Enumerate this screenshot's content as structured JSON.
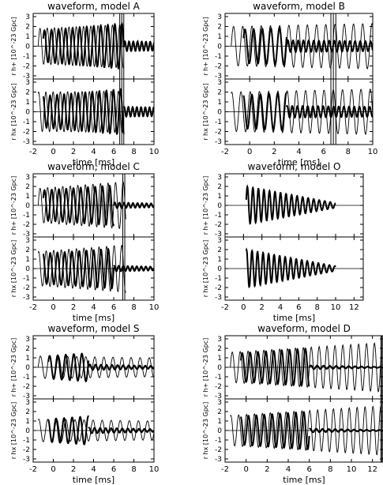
{
  "chart_data": [
    {
      "type": "line",
      "title": "waveform, model A",
      "xlabel": "time [ms]",
      "xlim": [
        -2,
        10
      ],
      "xticks": [
        "-2",
        "0",
        "2",
        "4",
        "6",
        "8",
        "10"
      ],
      "panels": [
        {
          "ylabel": "r h+ [10^-23 Gpc]",
          "ylim": [
            -3,
            3
          ],
          "yticks": [
            "-3",
            "-2",
            "-1",
            "0",
            "1",
            "2",
            "3"
          ],
          "series": [
            {
              "style": "thin",
              "x": [
                -1.5,
                7
              ],
              "amp_start": 1.8,
              "amp_end": 2.2,
              "period": 0.72,
              "phase": 0
            },
            {
              "style": "thick",
              "x": [
                -1,
                7
              ],
              "amp_start": 1.6,
              "amp_end": 2.3,
              "period": 0.7,
              "phase": 0.5
            },
            {
              "style": "thick",
              "x": [
                7,
                10
              ],
              "amp_start": 0.5,
              "amp_end": 0.45,
              "period": 0.42,
              "phase": 0
            }
          ],
          "spikes": [
            6.6,
            6.8,
            7.0
          ]
        },
        {
          "ylabel": "r hx [10^-23 Gpc]",
          "ylim": [
            -3,
            3
          ],
          "yticks": [
            "-3",
            "-2",
            "-1",
            "0",
            "1",
            "2",
            "3"
          ],
          "series": [
            {
              "style": "thin",
              "x": [
                -1.5,
                7
              ],
              "amp_start": 2,
              "amp_end": 2.1,
              "period": 0.72,
              "phase": 1.2
            },
            {
              "style": "thick",
              "x": [
                -1,
                7
              ],
              "amp_start": 1.6,
              "amp_end": 2.3,
              "period": 0.7,
              "phase": 1.8
            },
            {
              "style": "thick",
              "x": [
                7,
                10
              ],
              "amp_start": 0.5,
              "amp_end": 0.45,
              "period": 0.42,
              "phase": 1
            }
          ],
          "spikes": [
            6.6,
            6.8,
            7.0
          ]
        }
      ]
    },
    {
      "type": "line",
      "title": "waveform, model B",
      "xlabel": "time [ms]",
      "xlim": [
        -2,
        10
      ],
      "xticks": [
        "-2",
        "0",
        "2",
        "4",
        "6",
        "8",
        "10"
      ],
      "panels": [
        {
          "ylabel": "r h+ [10^-23 Gpc]",
          "ylim": [
            -3,
            3
          ],
          "yticks": [
            "-3",
            "-2",
            "-1",
            "0",
            "1",
            "2",
            "3"
          ],
          "series": [
            {
              "style": "thin",
              "x": [
                -1.5,
                10
              ],
              "amp_start": 2,
              "amp_end": 2.3,
              "period": 0.75,
              "phase": 0
            },
            {
              "style": "thick",
              "x": [
                -0.5,
                3
              ],
              "amp_start": 1.7,
              "amp_end": 1.9,
              "period": 0.7,
              "phase": 0.5
            },
            {
              "style": "thick",
              "x": [
                3,
                10
              ],
              "amp_start": 0.6,
              "amp_end": 0.5,
              "period": 0.42,
              "phase": 0
            }
          ],
          "spikes": [
            6.6,
            6.8,
            7.0
          ]
        },
        {
          "ylabel": "r hx [10^-23 Gpc]",
          "ylim": [
            -3,
            3
          ],
          "yticks": [
            "-3",
            "-2",
            "-1",
            "0",
            "1",
            "2",
            "3"
          ],
          "series": [
            {
              "style": "thin",
              "x": [
                -1.5,
                10
              ],
              "amp_start": 2,
              "amp_end": 2.3,
              "period": 0.75,
              "phase": 1.2
            },
            {
              "style": "thick",
              "x": [
                -0.5,
                3
              ],
              "amp_start": 1.7,
              "amp_end": 1.9,
              "period": 0.7,
              "phase": 1.8
            },
            {
              "style": "thick",
              "x": [
                3,
                10
              ],
              "amp_start": 0.6,
              "amp_end": 0.5,
              "period": 0.42,
              "phase": 1
            }
          ],
          "spikes": [
            6.6,
            6.8,
            7.0
          ]
        }
      ]
    },
    {
      "type": "line",
      "title": "waveform, model C",
      "xlabel": "time [ms]",
      "xlim": [
        -2,
        10
      ],
      "xticks": [
        "-2",
        "0",
        "2",
        "4",
        "6",
        "8",
        "10"
      ],
      "panels": [
        {
          "ylabel": "r h+ [10^-23 Gpc]",
          "ylim": [
            -3,
            3
          ],
          "yticks": [
            "-3",
            "-2",
            "-1",
            "0",
            "1",
            "2",
            "3"
          ],
          "series": [
            {
              "style": "thin",
              "x": [
                -1.5,
                7.2
              ],
              "amp_start": 1.8,
              "amp_end": 2.5,
              "period": 0.75,
              "phase": 0
            },
            {
              "style": "thick",
              "x": [
                -1,
                6
              ],
              "amp_start": 1.6,
              "amp_end": 2.1,
              "period": 0.72,
              "phase": 0.5
            },
            {
              "style": "thick",
              "x": [
                6,
                10
              ],
              "amp_start": 0.3,
              "amp_end": 0.2,
              "period": 0.45,
              "phase": 0
            }
          ],
          "spikes": [
            6.9,
            7.1
          ]
        },
        {
          "ylabel": "r hx [10^-23 Gpc]",
          "ylim": [
            -3,
            3
          ],
          "yticks": [
            "-3",
            "-2",
            "-1",
            "0",
            "1",
            "2",
            "3"
          ],
          "series": [
            {
              "style": "thin",
              "x": [
                -1.5,
                7.2
              ],
              "amp_start": 1.8,
              "amp_end": 2.5,
              "period": 0.75,
              "phase": 1.2
            },
            {
              "style": "thick",
              "x": [
                -1,
                6
              ],
              "amp_start": 1.6,
              "amp_end": 2.1,
              "period": 0.72,
              "phase": 1.8
            },
            {
              "style": "thick",
              "x": [
                6,
                10
              ],
              "amp_start": 0.3,
              "amp_end": 0.2,
              "period": 0.45,
              "phase": 1
            }
          ],
          "spikes": [
            6.9,
            7.1
          ]
        }
      ]
    },
    {
      "type": "line",
      "title": "waveform, model O",
      "xlabel": "time [ms]",
      "xlim": [
        -2,
        13
      ],
      "xticks": [
        "-2",
        "0",
        "2",
        "4",
        "6",
        "8",
        "10",
        "12"
      ],
      "panels": [
        {
          "ylabel": "r h+ [10^-23 Gpc]",
          "ylim": [
            -3,
            3
          ],
          "yticks": [
            "-3",
            "-2",
            "-1",
            "0",
            "1",
            "2",
            "3"
          ],
          "series": [
            {
              "style": "thick",
              "x": [
                0.3,
                10
              ],
              "amp_start": 2,
              "amp_end": 0.25,
              "period": 0.6,
              "phase": 0.3
            }
          ],
          "spikes": []
        },
        {
          "ylabel": "r hx [10^-23 Gpc]",
          "ylim": [
            -3,
            3
          ],
          "yticks": [
            "-3",
            "-2",
            "-1",
            "0",
            "1",
            "2",
            "3"
          ],
          "series": [
            {
              "style": "thick",
              "x": [
                0.3,
                10
              ],
              "amp_start": 2,
              "amp_end": 0.25,
              "period": 0.6,
              "phase": 1.3
            }
          ],
          "spikes": []
        }
      ]
    },
    {
      "type": "line",
      "title": "waveform, model S",
      "xlabel": "time [ms]",
      "xlim": [
        -2,
        10
      ],
      "xticks": [
        "-2",
        "0",
        "2",
        "4",
        "6",
        "8",
        "10"
      ],
      "panels": [
        {
          "ylabel": "r h+ [10^-23 Gpc]",
          "ylim": [
            -3,
            3
          ],
          "yticks": [
            "-3",
            "-2",
            "-1",
            "0",
            "1",
            "2",
            "3"
          ],
          "series": [
            {
              "style": "thin",
              "x": [
                -1.5,
                10
              ],
              "amp_start": 1.2,
              "amp_end": 1.0,
              "period": 0.9,
              "phase": 0
            },
            {
              "style": "thick",
              "x": [
                -0.5,
                3.5
              ],
              "amp_start": 1.2,
              "amp_end": 1.5,
              "period": 0.8,
              "phase": 0.5
            },
            {
              "style": "thick",
              "x": [
                3.5,
                10
              ],
              "amp_start": 0.3,
              "amp_end": 0.15,
              "period": 0.55,
              "phase": 0
            }
          ],
          "spikes": []
        },
        {
          "ylabel": "r hx [10^-23 Gpc]",
          "ylim": [
            -3,
            3
          ],
          "yticks": [
            "-3",
            "-2",
            "-1",
            "0",
            "1",
            "2",
            "3"
          ],
          "series": [
            {
              "style": "thin",
              "x": [
                -1.5,
                10
              ],
              "amp_start": 1.2,
              "amp_end": 1.0,
              "period": 0.9,
              "phase": 1.2
            },
            {
              "style": "thick",
              "x": [
                -0.5,
                3.5
              ],
              "amp_start": 1.2,
              "amp_end": 1.5,
              "period": 0.8,
              "phase": 1.8
            },
            {
              "style": "thick",
              "x": [
                3.5,
                10
              ],
              "amp_start": 0.3,
              "amp_end": 0.15,
              "period": 0.55,
              "phase": 1
            }
          ],
          "spikes": []
        }
      ]
    },
    {
      "type": "line",
      "title": "waveform, model D",
      "xlabel": "time [ms]",
      "xlim": [
        -2,
        13
      ],
      "xticks": [
        "-2",
        "0",
        "2",
        "4",
        "6",
        "8",
        "10",
        "12"
      ],
      "panels": [
        {
          "ylabel": "r h+ [10^-23 Gpc]",
          "ylim": [
            -3,
            3
          ],
          "yticks": [
            "-3",
            "-2",
            "-1",
            "0",
            "1",
            "2",
            "3"
          ],
          "series": [
            {
              "style": "thin",
              "x": [
                -1.5,
                12.8
              ],
              "amp_start": 1.6,
              "amp_end": 2.6,
              "period": 0.75,
              "phase": 0
            },
            {
              "style": "thick",
              "x": [
                -0.5,
                6
              ],
              "amp_start": 1.5,
              "amp_end": 2,
              "period": 0.75,
              "phase": 0.5
            },
            {
              "style": "thick",
              "x": [
                6,
                13
              ],
              "amp_start": 0.2,
              "amp_end": 0.05,
              "period": 0.6,
              "phase": 0
            }
          ],
          "spikes": [
            12.8,
            12.9
          ]
        },
        {
          "ylabel": "r hx [10^-23 Gpc]",
          "ylim": [
            -3,
            3
          ],
          "yticks": [
            "-3",
            "-2",
            "-1",
            "0",
            "1",
            "2",
            "3"
          ],
          "series": [
            {
              "style": "thin",
              "x": [
                -1.5,
                12.8
              ],
              "amp_start": 1.6,
              "amp_end": 2.6,
              "period": 0.75,
              "phase": 1.2
            },
            {
              "style": "thick",
              "x": [
                -0.5,
                6
              ],
              "amp_start": 1.5,
              "amp_end": 2,
              "period": 0.75,
              "phase": 1.8
            },
            {
              "style": "thick",
              "x": [
                6,
                13
              ],
              "amp_start": 0.2,
              "amp_end": 0.05,
              "period": 0.6,
              "phase": 1
            }
          ],
          "spikes": [
            12.8,
            12.9
          ]
        }
      ]
    }
  ]
}
